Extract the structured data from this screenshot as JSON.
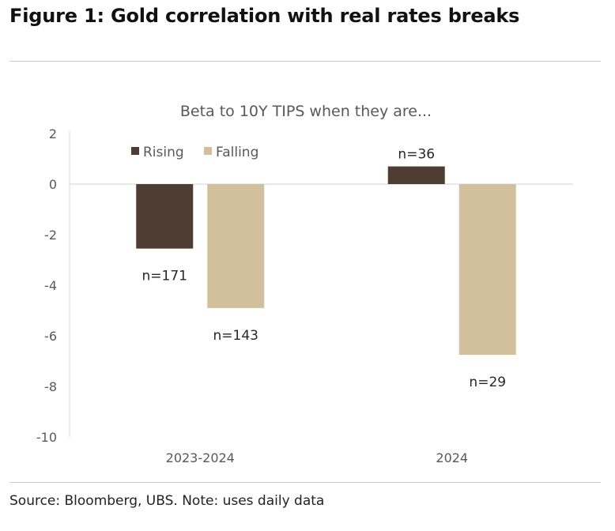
{
  "figure_title": "Figure 1: Gold correlation with real rates breaks",
  "source": "Source: Bloomberg, UBS. Note: uses daily data",
  "chart_data": {
    "type": "bar",
    "title": "Beta to 10Y TIPS when they are...",
    "categories": [
      "2023-2024",
      "2024"
    ],
    "series": [
      {
        "name": "Rising",
        "color": "#4d3d33",
        "values": [
          -2.55,
          0.7
        ],
        "labels": [
          "n=171",
          "n=36"
        ]
      },
      {
        "name": "Falling",
        "color": "#d2bf9c",
        "values": [
          -4.9,
          -6.75
        ],
        "labels": [
          "n=143",
          "n=29"
        ]
      }
    ],
    "ylim": [
      -10,
      2
    ],
    "yticks": [
      2,
      0,
      -2,
      -4,
      -6,
      -8,
      -10
    ],
    "xlabel": "",
    "ylabel": "",
    "legend": "top-left",
    "grid": false
  }
}
